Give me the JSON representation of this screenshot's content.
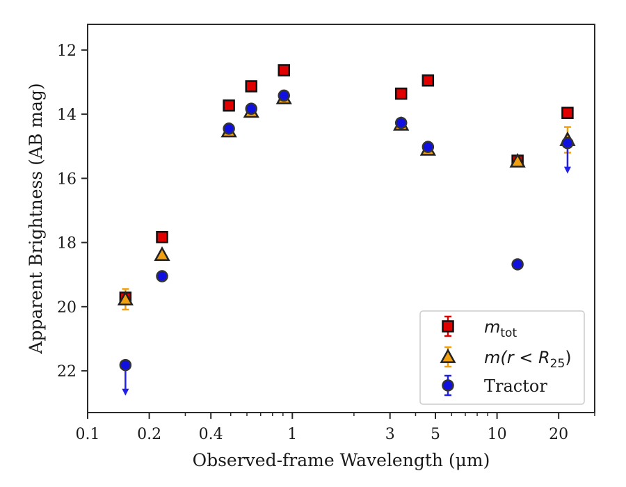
{
  "chart_data": {
    "type": "scatter",
    "xlabel": "Observed-frame Wavelength (μm)",
    "ylabel": "Apparent Brightness (AB mag)",
    "xscale": "log",
    "xlim": [
      0.1,
      30
    ],
    "ylim": [
      23.3,
      11.2
    ],
    "y_inverted": true,
    "x_ticks": [
      0.1,
      0.2,
      0.4,
      1,
      3,
      5,
      10,
      20
    ],
    "x_tick_labels": [
      "0.1",
      "0.2",
      "0.4",
      "1",
      "3",
      "5",
      "10",
      "20"
    ],
    "y_ticks": [
      12,
      14,
      16,
      18,
      20,
      22
    ],
    "y_tick_labels": [
      "12",
      "14",
      "16",
      "18",
      "20",
      "22"
    ],
    "legend_position": "lower-right",
    "series": [
      {
        "name": "m_tot",
        "legend_main": "m",
        "legend_sub": "tot",
        "marker": "square",
        "color": "#e00000",
        "errcolor": "#e00000",
        "points": [
          {
            "x": 0.153,
            "y": 19.72
          },
          {
            "x": 0.231,
            "y": 17.83
          },
          {
            "x": 0.49,
            "y": 13.73
          },
          {
            "x": 0.63,
            "y": 13.13
          },
          {
            "x": 0.91,
            "y": 12.63
          },
          {
            "x": 3.4,
            "y": 13.36
          },
          {
            "x": 4.6,
            "y": 12.95
          },
          {
            "x": 12.6,
            "y": 15.45
          },
          {
            "x": 22.1,
            "y": 13.96
          }
        ]
      },
      {
        "name": "m(r < R25)",
        "legend_main": "m(r < R",
        "legend_sub": "25",
        "legend_end": ")",
        "marker": "triangle",
        "color": "#f0a010",
        "errcolor": "#f0a010",
        "points": [
          {
            "x": 0.153,
            "y": 19.77,
            "err": 0.32
          },
          {
            "x": 0.231,
            "y": 18.38
          },
          {
            "x": 0.49,
            "y": 14.53
          },
          {
            "x": 0.63,
            "y": 13.92
          },
          {
            "x": 0.91,
            "y": 13.5
          },
          {
            "x": 3.4,
            "y": 14.32
          },
          {
            "x": 4.6,
            "y": 15.1
          },
          {
            "x": 12.6,
            "y": 15.47
          },
          {
            "x": 22.1,
            "y": 14.8,
            "err": 0.4
          }
        ]
      },
      {
        "name": "Tractor",
        "marker": "circle",
        "color": "#1010e0",
        "errcolor": "#2020e8",
        "points": [
          {
            "x": 0.153,
            "y": 21.82,
            "upper_limit": true
          },
          {
            "x": 0.231,
            "y": 19.05
          },
          {
            "x": 0.49,
            "y": 14.45
          },
          {
            "x": 0.63,
            "y": 13.83
          },
          {
            "x": 0.91,
            "y": 13.42
          },
          {
            "x": 3.4,
            "y": 14.27
          },
          {
            "x": 4.6,
            "y": 15.02
          },
          {
            "x": 12.6,
            "y": 18.68
          },
          {
            "x": 22.1,
            "y": 14.9,
            "upper_limit": true
          }
        ]
      }
    ]
  }
}
